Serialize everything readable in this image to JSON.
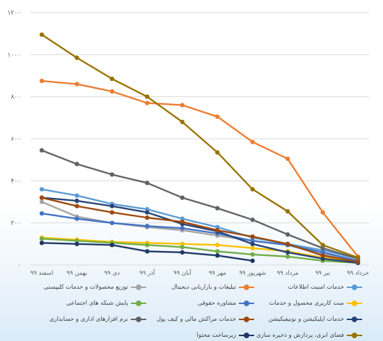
{
  "chart_data": {
    "type": "line",
    "title": "",
    "xlabel": "",
    "ylabel": "",
    "ylim": [
      0,
      1200
    ],
    "y_ticks": [
      "۰",
      "۲۰۰",
      "۴۰۰",
      "۶۰۰",
      "۸۰۰",
      "۱۰۰۰",
      "۱۲۰۰"
    ],
    "categories": [
      "خرداد ۹۹",
      "تیر ۹۹",
      "مرداد ۹۹",
      "شهریور ۹۹",
      "مهر ۹۹",
      "آبان ۹۹",
      "آذر ۹۹",
      "دی ۹۹",
      "بهمن ۹۹",
      "اسفند ۹۹"
    ],
    "grid": true,
    "legend_position": "bottom",
    "series": [
      {
        "name": "خدمات امنیت اطلاعات",
        "color": "#5B9BD5",
        "values": [
          30,
          70,
          100,
          130,
          180,
          220,
          265,
          290,
          330,
          360
        ]
      },
      {
        "name": "تبلیغات و بازاریابی دیجیتال",
        "color": "#ED7D31",
        "values": [
          40,
          250,
          505,
          585,
          705,
          760,
          770,
          825,
          860,
          875
        ]
      },
      {
        "name": "توزیع محصولات و خدمات کلیپستی",
        "color": "#A5A5A5",
        "values": [
          20,
          50,
          95,
          115,
          140,
          165,
          180,
          200,
          230,
          300
        ]
      },
      {
        "name": "ست کاریری محصول و خدمات",
        "color": "#FFC000",
        "values": [
          15,
          35,
          65,
          80,
          95,
          100,
          105,
          110,
          120,
          130
        ]
      },
      {
        "name": "مشاوره حقوقی",
        "color": "#4472C4",
        "values": [
          20,
          60,
          95,
          115,
          150,
          175,
          185,
          200,
          220,
          245
        ]
      },
      {
        "name": "پایش شبکه های اجتماعی",
        "color": "#70AD47",
        "values": [
          10,
          20,
          40,
          50,
          65,
          85,
          95,
          105,
          115,
          125
        ]
      },
      {
        "name": "خدمات اپلیکیشن و نوتیفیکیشن",
        "color": "#264478",
        "values": [
          10,
          30,
          60,
          100,
          160,
          195,
          250,
          280,
          305,
          320
        ]
      },
      {
        "name": "خدمات مراکش مالی و کیف پول",
        "color": "#9E480E",
        "values": [
          15,
          45,
          100,
          135,
          165,
          205,
          225,
          250,
          280,
          320
        ]
      },
      {
        "name": "نرم افزارهای اداری و حسابداری",
        "color": "#636363",
        "values": [
          30,
          80,
          145,
          215,
          270,
          320,
          390,
          430,
          480,
          545
        ]
      },
      {
        "name": "فضای ابری، پردازش و ذخیره سازی",
        "color": "#997300",
        "values": [
          35,
          95,
          255,
          360,
          535,
          680,
          800,
          885,
          985,
          1095
        ]
      },
      {
        "name": "زیرساخت محتوا",
        "color": "#1F3864",
        "values": [
          null,
          null,
          null,
          20,
          45,
          60,
          65,
          95,
          100,
          105
        ]
      }
    ]
  }
}
